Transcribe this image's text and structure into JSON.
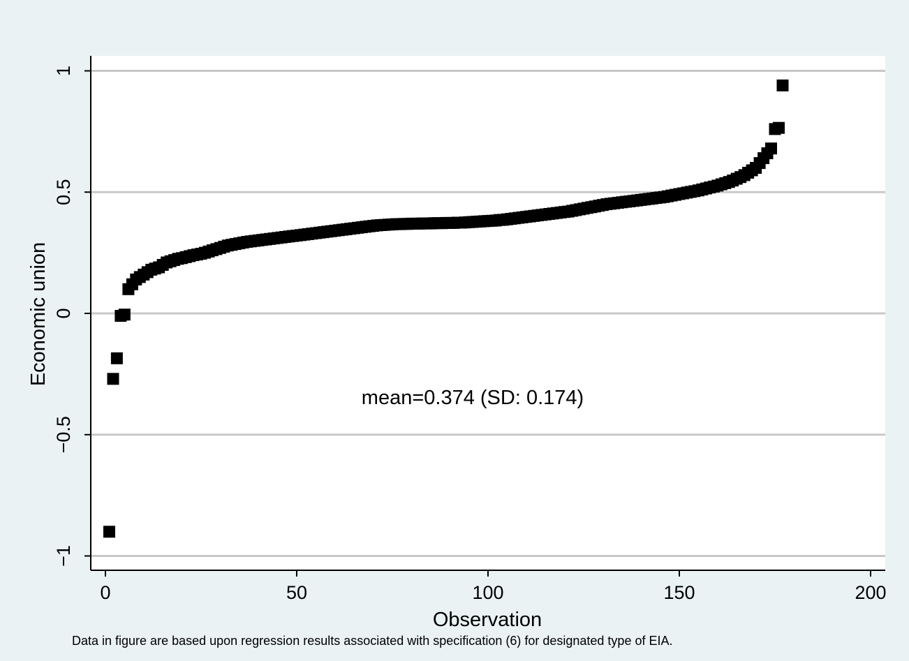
{
  "chart_data": {
    "type": "scatter",
    "title": "",
    "xlabel": "Observation",
    "ylabel": "Economic union",
    "xlim": [
      0,
      200
    ],
    "ylim": [
      -1,
      1
    ],
    "xticks": [
      0,
      50,
      100,
      150,
      200
    ],
    "xtick_labels": [
      "0",
      "50",
      "100",
      "150",
      "200"
    ],
    "yticks": [
      -1,
      -0.5,
      0,
      0.5,
      1
    ],
    "ytick_labels": [
      "−1",
      "−0.5",
      "0",
      "0.5",
      "1"
    ],
    "grid": "horizontal",
    "marker": "square",
    "marker_color": "#000000",
    "annotation": "mean=0.374 (SD: 0.174)",
    "note": "Data in figure are based upon regression results associated with specification (6) for designated type of EIA.",
    "points": [
      [
        1,
        -0.9
      ],
      [
        2,
        -0.27
      ],
      [
        3,
        -0.185
      ],
      [
        4,
        -0.01
      ],
      [
        5,
        -0.005
      ],
      [
        6,
        0.1
      ],
      [
        7,
        0.12
      ],
      [
        8,
        0.14
      ],
      [
        9,
        0.15
      ],
      [
        10,
        0.16
      ],
      [
        11,
        0.17
      ],
      [
        12,
        0.18
      ],
      [
        13,
        0.185
      ],
      [
        14,
        0.19
      ],
      [
        15,
        0.2
      ],
      [
        16,
        0.21
      ],
      [
        17,
        0.215
      ],
      [
        18,
        0.22
      ],
      [
        19,
        0.225
      ],
      [
        20,
        0.228
      ],
      [
        21,
        0.232
      ],
      [
        22,
        0.236
      ],
      [
        23,
        0.24
      ],
      [
        24,
        0.243
      ],
      [
        25,
        0.246
      ],
      [
        26,
        0.25
      ],
      [
        27,
        0.255
      ],
      [
        28,
        0.26
      ],
      [
        29,
        0.265
      ],
      [
        30,
        0.27
      ],
      [
        31,
        0.275
      ],
      [
        32,
        0.28
      ],
      [
        33,
        0.283
      ],
      [
        34,
        0.286
      ],
      [
        35,
        0.289
      ],
      [
        36,
        0.292
      ],
      [
        37,
        0.295
      ],
      [
        38,
        0.297
      ],
      [
        39,
        0.299
      ],
      [
        40,
        0.301
      ],
      [
        41,
        0.303
      ],
      [
        42,
        0.305
      ],
      [
        43,
        0.307
      ],
      [
        44,
        0.309
      ],
      [
        45,
        0.311
      ],
      [
        46,
        0.313
      ],
      [
        47,
        0.315
      ],
      [
        48,
        0.317
      ],
      [
        49,
        0.319
      ],
      [
        50,
        0.321
      ],
      [
        51,
        0.323
      ],
      [
        52,
        0.325
      ],
      [
        53,
        0.327
      ],
      [
        54,
        0.329
      ],
      [
        55,
        0.331
      ],
      [
        56,
        0.333
      ],
      [
        57,
        0.335
      ],
      [
        58,
        0.337
      ],
      [
        59,
        0.339
      ],
      [
        60,
        0.341
      ],
      [
        61,
        0.343
      ],
      [
        62,
        0.345
      ],
      [
        63,
        0.347
      ],
      [
        64,
        0.349
      ],
      [
        65,
        0.351
      ],
      [
        66,
        0.353
      ],
      [
        67,
        0.355
      ],
      [
        68,
        0.357
      ],
      [
        69,
        0.359
      ],
      [
        70,
        0.361
      ],
      [
        71,
        0.363
      ],
      [
        72,
        0.364
      ],
      [
        73,
        0.365
      ],
      [
        74,
        0.366
      ],
      [
        75,
        0.367
      ],
      [
        76,
        0.368
      ],
      [
        77,
        0.368
      ],
      [
        78,
        0.369
      ],
      [
        79,
        0.369
      ],
      [
        80,
        0.37
      ],
      [
        81,
        0.37
      ],
      [
        82,
        0.37
      ],
      [
        83,
        0.371
      ],
      [
        84,
        0.371
      ],
      [
        85,
        0.371
      ],
      [
        86,
        0.372
      ],
      [
        87,
        0.372
      ],
      [
        88,
        0.372
      ],
      [
        89,
        0.373
      ],
      [
        90,
        0.373
      ],
      [
        91,
        0.373
      ],
      [
        92,
        0.374
      ],
      [
        93,
        0.374
      ],
      [
        94,
        0.375
      ],
      [
        95,
        0.376
      ],
      [
        96,
        0.377
      ],
      [
        97,
        0.378
      ],
      [
        98,
        0.379
      ],
      [
        99,
        0.38
      ],
      [
        100,
        0.381
      ],
      [
        101,
        0.382
      ],
      [
        102,
        0.383
      ],
      [
        103,
        0.385
      ],
      [
        104,
        0.386
      ],
      [
        105,
        0.388
      ],
      [
        106,
        0.39
      ],
      [
        107,
        0.392
      ],
      [
        108,
        0.394
      ],
      [
        109,
        0.396
      ],
      [
        110,
        0.398
      ],
      [
        111,
        0.4
      ],
      [
        112,
        0.402
      ],
      [
        113,
        0.404
      ],
      [
        114,
        0.406
      ],
      [
        115,
        0.408
      ],
      [
        116,
        0.41
      ],
      [
        117,
        0.412
      ],
      [
        118,
        0.414
      ],
      [
        119,
        0.416
      ],
      [
        120,
        0.418
      ],
      [
        121,
        0.42
      ],
      [
        122,
        0.423
      ],
      [
        123,
        0.426
      ],
      [
        124,
        0.429
      ],
      [
        125,
        0.432
      ],
      [
        126,
        0.435
      ],
      [
        127,
        0.438
      ],
      [
        128,
        0.441
      ],
      [
        129,
        0.444
      ],
      [
        130,
        0.447
      ],
      [
        131,
        0.45
      ],
      [
        132,
        0.452
      ],
      [
        133,
        0.454
      ],
      [
        134,
        0.456
      ],
      [
        135,
        0.458
      ],
      [
        136,
        0.46
      ],
      [
        137,
        0.462
      ],
      [
        138,
        0.464
      ],
      [
        139,
        0.466
      ],
      [
        140,
        0.468
      ],
      [
        141,
        0.47
      ],
      [
        142,
        0.472
      ],
      [
        143,
        0.474
      ],
      [
        144,
        0.476
      ],
      [
        145,
        0.478
      ],
      [
        146,
        0.48
      ],
      [
        147,
        0.483
      ],
      [
        148,
        0.486
      ],
      [
        149,
        0.489
      ],
      [
        150,
        0.492
      ],
      [
        151,
        0.495
      ],
      [
        152,
        0.498
      ],
      [
        153,
        0.501
      ],
      [
        154,
        0.504
      ],
      [
        155,
        0.507
      ],
      [
        156,
        0.511
      ],
      [
        157,
        0.515
      ],
      [
        158,
        0.519
      ],
      [
        159,
        0.523
      ],
      [
        160,
        0.527
      ],
      [
        161,
        0.532
      ],
      [
        162,
        0.537
      ],
      [
        163,
        0.542
      ],
      [
        164,
        0.548
      ],
      [
        165,
        0.555
      ],
      [
        166,
        0.562
      ],
      [
        167,
        0.57
      ],
      [
        168,
        0.58
      ],
      [
        169,
        0.59
      ],
      [
        170,
        0.6
      ],
      [
        171,
        0.62
      ],
      [
        172,
        0.64
      ],
      [
        173,
        0.66
      ],
      [
        174,
        0.68
      ],
      [
        175,
        0.76
      ],
      [
        176,
        0.765
      ],
      [
        177,
        0.94
      ]
    ]
  }
}
